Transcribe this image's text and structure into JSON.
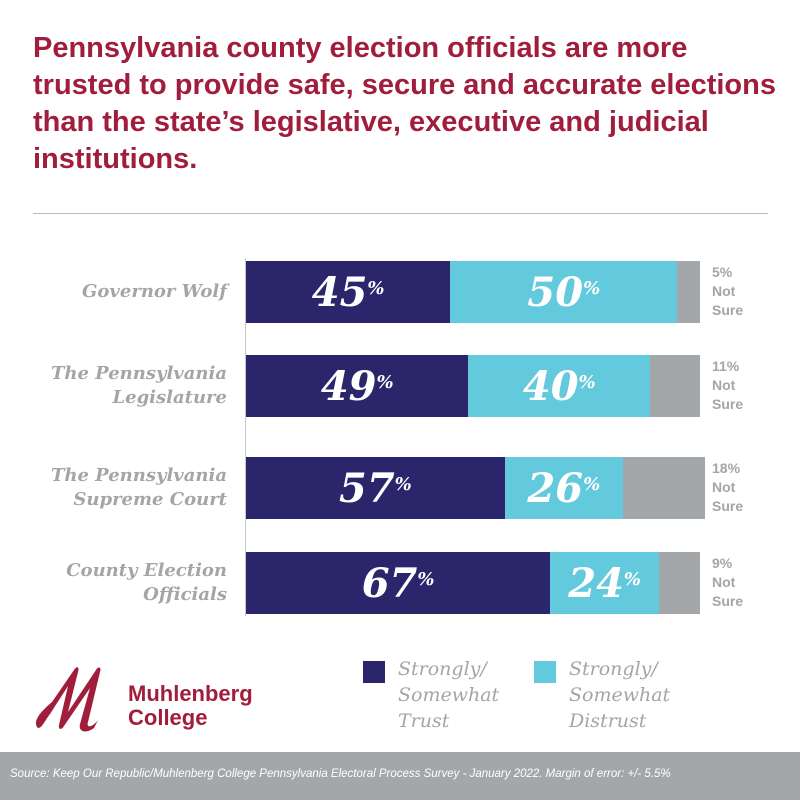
{
  "title": "Pennsylvania county election officials are more trusted to provide safe, secure and accurate elections than the state’s legislative, executive and judicial institutions.",
  "chart_data": {
    "type": "bar",
    "orientation": "horizontal",
    "stacked": true,
    "categories": [
      "Governor Wolf",
      "The Pennsylvania Legislature",
      "The Pennsylvania Supreme Court",
      "County Election Officials"
    ],
    "series": [
      {
        "name": "Strongly/ Somewhat Trust",
        "values": [
          45,
          49,
          57,
          67
        ],
        "color": "#2b256b"
      },
      {
        "name": "Strongly/ Somewhat Distrust",
        "values": [
          50,
          40,
          26,
          24
        ],
        "color": "#63c9dc"
      },
      {
        "name": "Not Sure",
        "values": [
          5,
          11,
          18,
          9
        ],
        "color": "#a3a7aa"
      }
    ],
    "xlim": [
      0,
      100
    ],
    "grid": false,
    "legend": "bottom",
    "percent_sign": "%",
    "not_sure_label": [
      "Not",
      "Sure"
    ]
  },
  "logo": {
    "line1": "Muhlenberg",
    "line2": "College",
    "color": "#a11d3c"
  },
  "legend": [
    {
      "lines": [
        "Strongly/",
        "Somewhat",
        "Trust"
      ],
      "color": "#2b256b"
    },
    {
      "lines": [
        "Strongly/",
        "Somewhat",
        "Distrust"
      ],
      "color": "#63c9dc"
    }
  ],
  "source": "Source: Keep Our Republic/Muhlenberg College Pennsylvania Electoral Process Survey - January 2022. Margin of error: +/- 5.5%"
}
